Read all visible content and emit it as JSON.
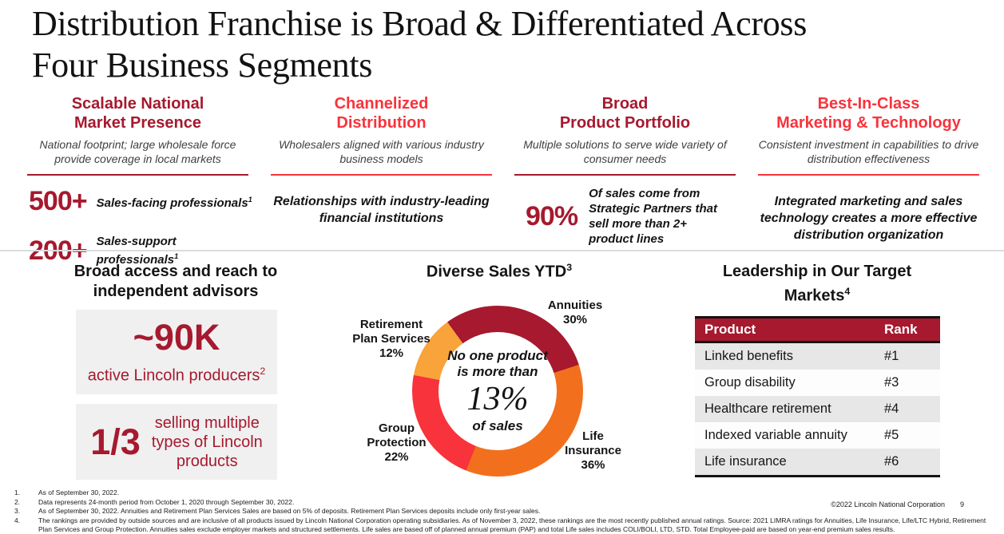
{
  "colors": {
    "dark_red": "#A6192E",
    "bright_red": "#F8333C",
    "orange": "#F2701D",
    "amber": "#F9A33B",
    "box_gray": "#F0F0F0",
    "row_gray": "#E7E7E7"
  },
  "title": "Distribution Franchise is Broad & Differentiated Across\nFour Business Segments",
  "columns": [
    {
      "heading": "Scalable National\nMarket Presence",
      "subtitle": "National footprint; large wholesale force provide coverage in local markets",
      "stats": [
        {
          "value": "500+",
          "label": "Sales-facing professionals",
          "sup": "1"
        },
        {
          "value": "200+",
          "label": "Sales-support professionals",
          "sup": "1"
        }
      ]
    },
    {
      "heading": "Channelized\nDistribution",
      "subtitle": "Wholesalers aligned with various industry business models",
      "message": "Relationships with industry-leading financial institutions"
    },
    {
      "heading": "Broad\nProduct Portfolio",
      "subtitle": "Multiple solutions to serve wide variety of consumer needs",
      "stats": [
        {
          "value": "90%",
          "label": "Of sales come from\nStrategic Partners that\nsell more than 2+\nproduct lines"
        }
      ]
    },
    {
      "heading": "Best-In-Class\nMarketing & Technology",
      "subtitle": "Consistent investment in capabilities to drive distribution effectiveness",
      "message": "Integrated marketing and sales technology creates a more effective distribution organization"
    }
  ],
  "advisors": {
    "heading": "Broad access and reach to\nindependent advisors",
    "box1": {
      "value": "~90K",
      "label": "active Lincoln producers",
      "sup": "2"
    },
    "box2": {
      "value": "1/3",
      "label": "selling multiple\ntypes of Lincoln\nproducts"
    }
  },
  "chart_heading": {
    "text": "Diverse Sales YTD",
    "sup": "3"
  },
  "chart_data": {
    "type": "pie",
    "subtype": "donut",
    "title": "Diverse Sales YTD",
    "start_angle_deg": -36,
    "slices": [
      {
        "label": "Annuities",
        "value": 30,
        "color": "#A6192E"
      },
      {
        "label": "Life Insurance",
        "value": 36,
        "color": "#F2701D"
      },
      {
        "label": "Group Protection",
        "value": 22,
        "color": "#F8333C"
      },
      {
        "label": "Retirement Plan Services",
        "value": 12,
        "color": "#F9A33B"
      }
    ],
    "labels": {
      "annuities": "Annuities\n30%",
      "retirement": "Retirement\nPlan Services\n12%",
      "group": "Group\nProtection\n22%",
      "life": "Life\nInsurance\n36%"
    },
    "center_text": {
      "line1": "No one product\nis more than",
      "big": "13%",
      "line2": "of sales"
    }
  },
  "leadership": {
    "heading_line1": "Leadership in Our Target",
    "heading_line2": "Markets",
    "heading_sup": "4",
    "col_product": "Product",
    "col_rank": "Rank",
    "rows": [
      {
        "product": "Linked benefits",
        "rank": "#1"
      },
      {
        "product": "Group disability",
        "rank": "#3"
      },
      {
        "product": "Healthcare retirement",
        "rank": "#4"
      },
      {
        "product": "Indexed variable annuity",
        "rank": "#5"
      },
      {
        "product": "Life insurance",
        "rank": "#6"
      }
    ]
  },
  "footnotes": [
    {
      "num": "1.",
      "text": "As of September 30, 2022."
    },
    {
      "num": "2.",
      "text": "Data represents 24-month period from October 1, 2020 through September 30, 2022."
    },
    {
      "num": "3.",
      "text": "As of September 30, 2022. Annuities and Retirement Plan Services Sales are based on 5% of deposits. Retirement Plan Services deposits include only first-year sales."
    },
    {
      "num": "4.",
      "text": "The rankings are provided by outside sources and are inclusive of all products issued by Lincoln National Corporation operating subsidiaries. As of November 3, 2022, these rankings are the most recently published annual ratings. Source: 2021 LIMRA ratings for Annuities, Life Insurance, Life/LTC Hybrid, Retirement Plan Services and Group Protection. Annuities sales exclude employer markets and structured settlements. Life sales are based off of planned annual premium (PAP) and total Life sales includes COLI/BOLI, LTD, STD. Total Employee-paid are based on year-end premium sales results."
    }
  ],
  "footer": {
    "copyright": "©2022 Lincoln National Corporation",
    "page": "9"
  }
}
